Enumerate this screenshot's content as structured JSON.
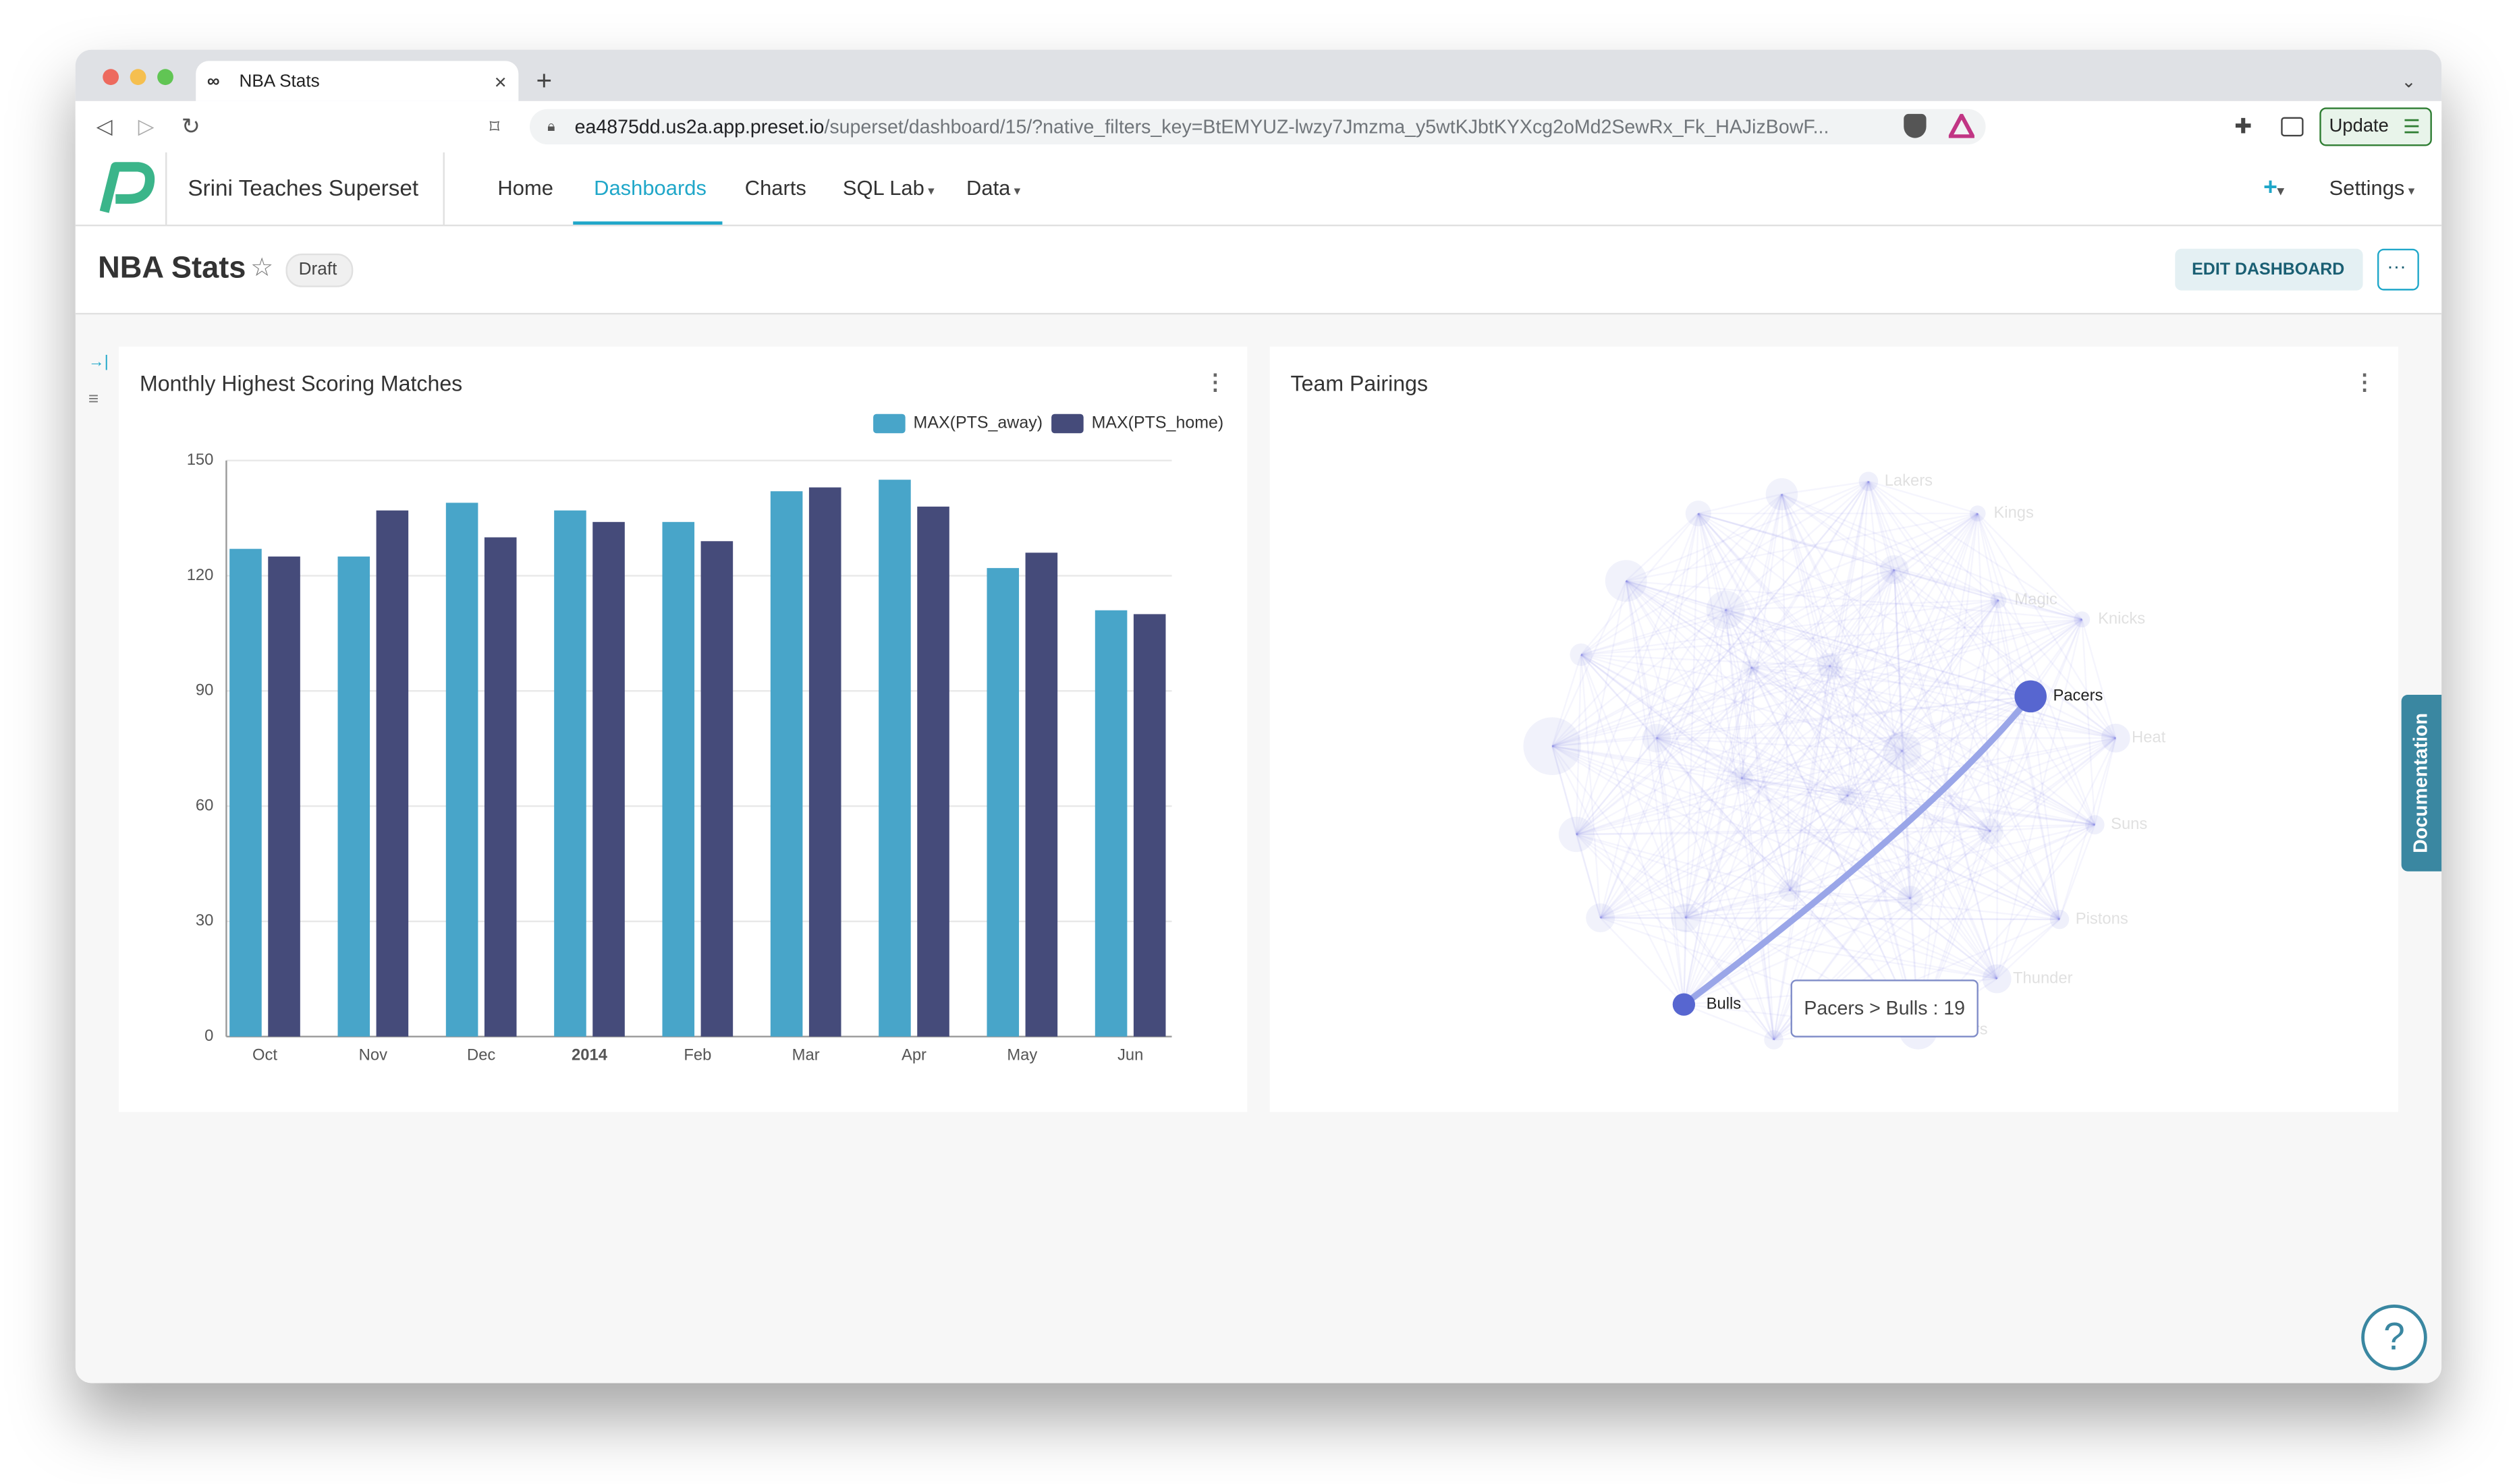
{
  "browser": {
    "tab_title": "NBA Stats",
    "url_host": "ea4875dd.us2a.app.preset.io",
    "url_path": "/superset/dashboard/15/?native_filters_key=BtEMYUZ-lwzy7Jmzma_y5wtKJbtKYXcg2oMd2SewRx_Fk_HAJizBowF...",
    "update_button": "Update"
  },
  "nav": {
    "workspace": "Srini Teaches Superset",
    "items": [
      "Home",
      "Dashboards",
      "Charts",
      "SQL Lab",
      "Data"
    ],
    "active_item": 1,
    "settings": "Settings"
  },
  "header": {
    "title": "NBA Stats",
    "status": "Draft",
    "edit_button": "EDIT DASHBOARD"
  },
  "side_tab": "Documentation",
  "chart_data": [
    {
      "type": "bar",
      "title": "Monthly Highest Scoring Matches",
      "categories": [
        "Oct",
        "Nov",
        "Dec",
        "2014",
        "Feb",
        "Mar",
        "Apr",
        "May",
        "Jun"
      ],
      "series": [
        {
          "name": "MAX(PTS_away)",
          "color": "#48a5c9",
          "values": [
            127,
            125,
            139,
            137,
            134,
            142,
            145,
            122,
            111
          ]
        },
        {
          "name": "MAX(PTS_home)",
          "color": "#454b7a",
          "values": [
            125,
            137,
            130,
            134,
            129,
            143,
            138,
            126,
            110
          ]
        }
      ],
      "ylim": [
        0,
        150
      ],
      "yticks": [
        0,
        30,
        60,
        90,
        120,
        150
      ],
      "grid": true
    },
    {
      "type": "graph",
      "title": "Team Pairings",
      "nodes": [
        "Lakers",
        "Kings",
        "Knicks",
        "Magic",
        "Heat",
        "Suns",
        "Pistons",
        "Thunder",
        "Blazers",
        "Pacers",
        "Bulls"
      ],
      "highlighted_nodes": [
        9,
        10
      ],
      "tooltip": "Pacers > Bulls : 19"
    }
  ]
}
